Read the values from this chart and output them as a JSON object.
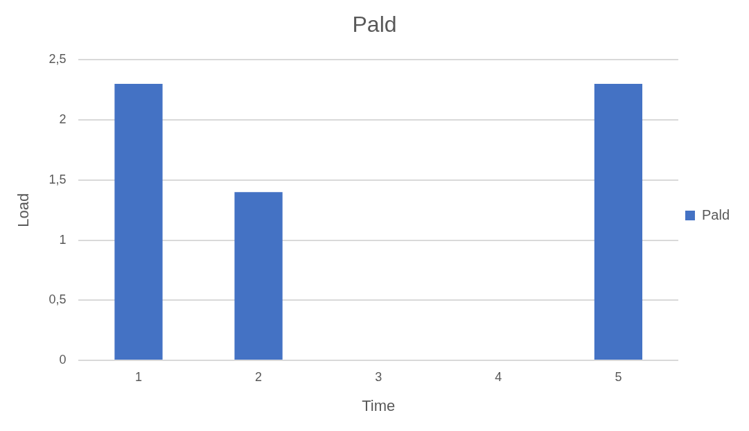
{
  "chart_data": {
    "type": "bar",
    "title": "Pald",
    "xlabel": "Time",
    "ylabel": "Load",
    "categories": [
      "1",
      "2",
      "3",
      "4",
      "5"
    ],
    "series": [
      {
        "name": "Pald",
        "color": "#4472c4",
        "values": [
          2.3,
          1.4,
          0,
          0,
          2.3
        ]
      }
    ],
    "ylim": [
      0,
      2.5
    ],
    "yticks": [
      0,
      {
        "value": 0.5,
        "label": "0,5"
      },
      1,
      {
        "value": 1.5,
        "label": "1,5"
      },
      2,
      {
        "value": 2.5,
        "label": "2,5"
      }
    ],
    "grid": "y",
    "legend": "right"
  }
}
